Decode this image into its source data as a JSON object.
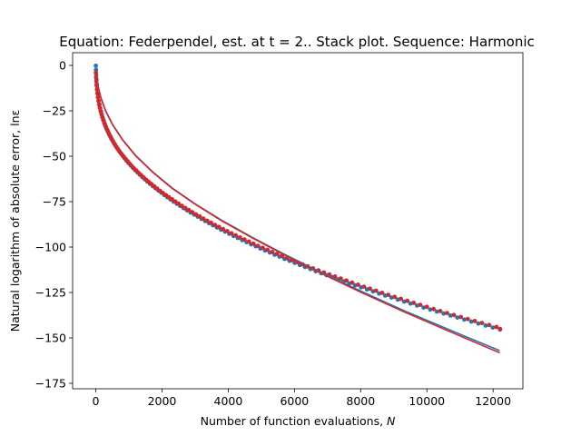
{
  "chart_data": {
    "type": "scatter",
    "title": "Equation: Federpendel, est. at t = 2.. Stack plot. Sequence: Harmonic",
    "xlabel": "Number of function evaluations, ",
    "xlabel_var": "N",
    "ylabel": "Natural logarithm of absolute error, lnε",
    "xlim": [
      -700,
      12900
    ],
    "ylim": [
      -178,
      7
    ],
    "x_ticks": [
      0,
      2000,
      4000,
      6000,
      8000,
      10000,
      12000
    ],
    "y_ticks": [
      0,
      -25,
      -50,
      -75,
      -100,
      -125,
      -150,
      -175
    ],
    "grid": false,
    "series": [
      {
        "style": "points",
        "color": "#1f77b4",
        "x": [
          2,
          6,
          12,
          20,
          30,
          42,
          56,
          72,
          90,
          110,
          132,
          156,
          182,
          210,
          240,
          272,
          306,
          342,
          380,
          420,
          462,
          506,
          552,
          600,
          650,
          702,
          756,
          812,
          870,
          930,
          992,
          1056,
          1122,
          1190,
          1260,
          1332,
          1406,
          1482,
          1560,
          1640,
          1722,
          1806,
          1892,
          1980,
          2070,
          2162,
          2256,
          2352,
          2450,
          2550,
          2652,
          2756,
          2862,
          2970,
          3080,
          3192,
          3306,
          3422,
          3540,
          3660,
          3782,
          3906,
          4032,
          4160,
          4290,
          4422,
          4556,
          4692,
          4830,
          4970,
          5112,
          5256,
          5402,
          5550,
          5700,
          5852,
          6006,
          6162,
          6320,
          6480,
          6642,
          6806,
          6972,
          7140,
          7310,
          7482,
          7656,
          7832,
          8010,
          8190,
          8372,
          8556,
          8742,
          8930,
          9120,
          9312,
          9506,
          9702,
          9900,
          10100,
          10302,
          10506,
          10712,
          10920,
          11130,
          11342,
          11556,
          11772,
          11990,
          12210
        ],
        "y": [
          -0.2,
          -2.5,
          -5.2,
          -7.8,
          -10.4,
          -12.9,
          -15.2,
          -17.4,
          -19.5,
          -21.5,
          -23.5,
          -25.3,
          -27.1,
          -28.8,
          -30.5,
          -32.2,
          -33.8,
          -35.4,
          -36.9,
          -38.5,
          -40.0,
          -41.4,
          -42.9,
          -44.3,
          -45.7,
          -47.1,
          -48.4,
          -49.8,
          -51.1,
          -52.5,
          -53.8,
          -55.1,
          -56.4,
          -57.7,
          -58.9,
          -60.2,
          -61.5,
          -62.7,
          -64.0,
          -65.2,
          -66.5,
          -67.7,
          -68.9,
          -70.1,
          -71.4,
          -72.6,
          -73.8,
          -75.0,
          -76.2,
          -77.4,
          -78.6,
          -79.8,
          -81.0,
          -82.1,
          -83.3,
          -84.5,
          -85.7,
          -86.9,
          -88.0,
          -89.2,
          -90.4,
          -91.5,
          -92.7,
          -93.9,
          -95.0,
          -96.2,
          -97.3,
          -98.5,
          -99.6,
          -100.8,
          -101.9,
          -103.0,
          -104.2,
          -105.3,
          -106.5,
          -107.6,
          -108.7,
          -109.9,
          -111.0,
          -112.1,
          -113.3,
          -114.4,
          -115.5,
          -116.6,
          -117.8,
          -118.9,
          -120.0,
          -121.1,
          -122.2,
          -123.3,
          -124.4,
          -125.6,
          -126.7,
          -127.8,
          -128.9,
          -130.0,
          -131.1,
          -132.2,
          -133.3,
          -134.4,
          -135.5,
          -136.6,
          -137.7,
          -138.8,
          -139.9,
          -141.0,
          -142.1,
          -143.2,
          -144.3,
          -145.4
        ]
      },
      {
        "style": "points",
        "color": "#d62728",
        "x": [
          4,
          9,
          16,
          25,
          36,
          49,
          64,
          81,
          100,
          121,
          144,
          169,
          196,
          225,
          256,
          289,
          324,
          361,
          400,
          441,
          484,
          529,
          576,
          625,
          676,
          729,
          784,
          841,
          900,
          961,
          1024,
          1089,
          1156,
          1225,
          1296,
          1369,
          1444,
          1521,
          1600,
          1681,
          1764,
          1849,
          1936,
          2025,
          2116,
          2209,
          2304,
          2401,
          2500,
          2601,
          2704,
          2809,
          2916,
          3025,
          3136,
          3249,
          3364,
          3481,
          3600,
          3721,
          3844,
          3969,
          4096,
          4225,
          4356,
          4489,
          4624,
          4761,
          4900,
          5041,
          5184,
          5329,
          5476,
          5625,
          5776,
          5929,
          6084,
          6241,
          6400,
          6561,
          6724,
          6889,
          7056,
          7225,
          7396,
          7569,
          7744,
          7921,
          8100,
          8281,
          8464,
          8649,
          8836,
          9025,
          9216,
          9409,
          9604,
          9801,
          10000,
          10201,
          10404,
          10609,
          10816,
          11025,
          11236,
          11449,
          11664,
          11881,
          12100,
          12210
        ],
        "y": [
          -4.0,
          -6.5,
          -8.8,
          -11.0,
          -13.3,
          -15.5,
          -17.6,
          -19.6,
          -21.5,
          -23.3,
          -25.1,
          -26.8,
          -28.5,
          -30.1,
          -31.7,
          -33.3,
          -34.8,
          -36.3,
          -37.8,
          -39.2,
          -40.7,
          -42.1,
          -43.5,
          -44.9,
          -46.2,
          -47.6,
          -48.9,
          -50.2,
          -51.5,
          -52.8,
          -54.1,
          -55.4,
          -56.7,
          -57.9,
          -59.2,
          -60.4,
          -61.7,
          -62.9,
          -64.1,
          -65.3,
          -66.5,
          -67.8,
          -69.0,
          -70.2,
          -71.4,
          -72.5,
          -73.7,
          -74.9,
          -76.1,
          -77.3,
          -78.5,
          -79.6,
          -80.8,
          -82.0,
          -83.1,
          -84.3,
          -85.5,
          -86.6,
          -87.8,
          -88.9,
          -90.1,
          -91.2,
          -92.4,
          -93.5,
          -94.7,
          -95.8,
          -97.0,
          -98.1,
          -99.3,
          -100.4,
          -101.5,
          -102.7,
          -103.8,
          -104.9,
          -106.1,
          -107.2,
          -108.3,
          -109.5,
          -110.6,
          -111.7,
          -112.8,
          -114.0,
          -115.1,
          -116.2,
          -117.3,
          -118.4,
          -119.6,
          -120.7,
          -121.8,
          -122.9,
          -124.0,
          -125.2,
          -126.3,
          -127.4,
          -128.5,
          -129.6,
          -130.7,
          -131.8,
          -132.9,
          -134.1,
          -135.2,
          -136.3,
          -137.4,
          -138.5,
          -139.6,
          -140.7,
          -141.8,
          -142.9,
          -144.0,
          -145.1
        ]
      },
      {
        "style": "line",
        "color": "#1f77b4",
        "x": [
          0,
          50,
          150,
          300,
          500,
          800,
          1200,
          1700,
          2300,
          3000,
          3800,
          4700,
          5700,
          6800,
          8000,
          9300,
          10700,
          12200
        ],
        "y": [
          -4.0,
          -10.0,
          -17.5,
          -25.0,
          -32.3,
          -40.6,
          -49.5,
          -58.3,
          -67.4,
          -76.2,
          -85.2,
          -94.4,
          -104.0,
          -113.9,
          -124.2,
          -134.9,
          -145.7,
          -157.0
        ]
      },
      {
        "style": "line",
        "color": "#d62728",
        "x": [
          0,
          50,
          150,
          300,
          500,
          800,
          1200,
          1700,
          2300,
          3000,
          3800,
          4700,
          5700,
          6800,
          8000,
          9300,
          10700,
          12200
        ],
        "y": [
          -4.2,
          -10.3,
          -17.8,
          -25.2,
          -32.5,
          -40.8,
          -49.7,
          -58.5,
          -67.6,
          -76.4,
          -85.5,
          -94.7,
          -104.4,
          -114.4,
          -124.8,
          -135.6,
          -146.6,
          -158.2
        ]
      }
    ]
  }
}
